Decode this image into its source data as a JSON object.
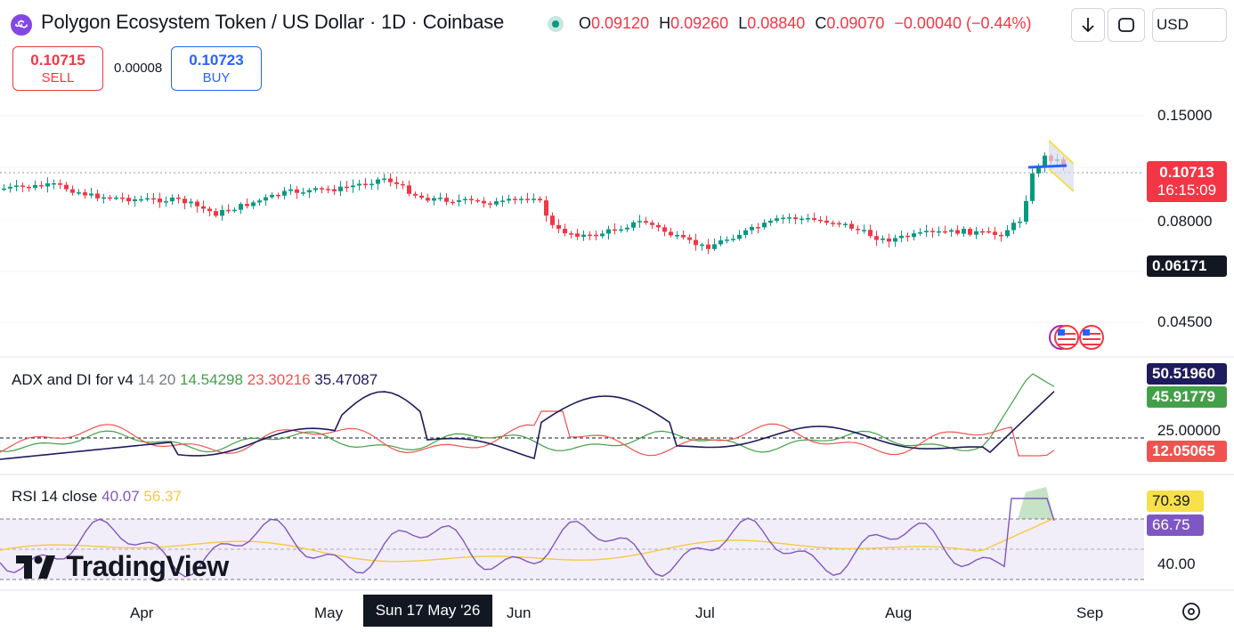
{
  "header": {
    "title": "Polygon Ecosystem Token / US Dollar · 1D · Coinbase",
    "ohlc": [
      {
        "k": "O",
        "v": "0.09120"
      },
      {
        "k": "H",
        "v": "0.09260"
      },
      {
        "k": "L",
        "v": "0.08840"
      },
      {
        "k": "C",
        "v": "0.09070"
      }
    ],
    "change": "−0.00040 (−0.44%)",
    "currency": "USD"
  },
  "trade": {
    "sell_price": "0.10715",
    "sell_label": "SELL",
    "spread": "0.00008",
    "buy_price": "0.10723",
    "buy_label": "BUY"
  },
  "price_axis": {
    "ticks": [
      "0.15000",
      "0.08000",
      "0.04500"
    ],
    "last_price": "0.10713",
    "countdown": "16:15:09",
    "crosshair_price": "0.06171"
  },
  "adx": {
    "label": "ADX and DI for v4",
    "params": "14 20",
    "plus_di": "14.54298",
    "minus_di": "23.30216",
    "adx": "35.47087",
    "tag1": "50.51960",
    "tag2": "45.91779",
    "level": "25.00000",
    "tag3": "12.05065"
  },
  "rsi": {
    "label": "RSI 14 close",
    "rsi": "40.07",
    "ma": "56.37",
    "tag_ma": "70.39",
    "tag_rsi": "66.75",
    "level": "40.00"
  },
  "time_axis": {
    "labels": [
      "Apr",
      "May",
      "Jun",
      "Jul",
      "Aug",
      "Sep"
    ],
    "highlight": "Sun 17 May '26"
  },
  "branding": "TradingView",
  "colors": {
    "up": "#089981",
    "down": "#f23645",
    "blue": "#2962ff",
    "purple": "#7e57c2",
    "yellow": "#f7c846",
    "navy": "#1e1b5e"
  }
}
